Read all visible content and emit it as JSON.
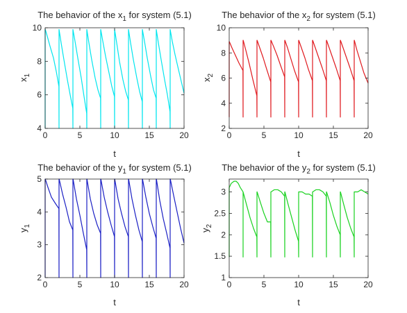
{
  "chart_data": [
    {
      "type": "line",
      "title_prefix": "The behavior of the x",
      "title_subscript": "1",
      "title_suffix": " for system (5.1)",
      "xlabel": "t",
      "ylabel_main": "x",
      "ylabel_subscript": "1",
      "xlim": [
        0,
        20
      ],
      "ylim": [
        4,
        10
      ],
      "xticks": [
        0,
        5,
        10,
        15,
        20
      ],
      "yticks": [
        4,
        6,
        8,
        10
      ],
      "color": "#00e5ee",
      "series": [
        {
          "x": [
            0,
            0,
            0.02,
            0.3,
            0.7,
            1.2,
            1.6,
            1.98,
            2,
            2,
            2.3,
            2.7,
            3.2,
            3.6,
            3.98,
            4,
            4,
            4.3,
            4.7,
            5.2,
            5.6,
            5.98,
            6,
            6,
            6.3,
            6.7,
            7.2,
            7.6,
            7.98,
            8,
            8,
            8.3,
            8.7,
            9.2,
            9.6,
            9.98,
            10,
            10,
            10.3,
            10.7,
            11.2,
            11.6,
            11.98,
            12,
            12,
            12.3,
            12.7,
            13.2,
            13.6,
            13.98,
            14,
            14,
            14.3,
            14.7,
            15.2,
            15.6,
            15.98,
            16,
            16,
            16.3,
            16.7,
            17.2,
            17.6,
            17.98,
            18,
            18,
            18.3,
            18.7,
            19.2,
            19.6,
            20
          ],
          "y": [
            4,
            9.9,
            9.9,
            9.5,
            8.9,
            8.2,
            7.4,
            6.5,
            4,
            9.9,
            9.1,
            8.1,
            6.9,
            6.0,
            5.2,
            4,
            9.9,
            9.2,
            8.2,
            7.0,
            5.9,
            4.9,
            4,
            9.9,
            9.1,
            8.1,
            7.0,
            6.3,
            5.8,
            4,
            9.9,
            9.2,
            8.3,
            7.3,
            6.5,
            5.9,
            4,
            9.9,
            9.1,
            8.0,
            6.9,
            6.2,
            5.7,
            4,
            9.9,
            9.1,
            8.1,
            7.0,
            6.2,
            5.6,
            4,
            9.9,
            9.2,
            8.2,
            7.1,
            6.3,
            5.8,
            4,
            9.9,
            9.1,
            8.1,
            6.9,
            6.0,
            5.0,
            4,
            9.9,
            9.2,
            8.4,
            7.5,
            6.8,
            6.1
          ]
        }
      ]
    },
    {
      "type": "line",
      "title_prefix": "The behavior of the x",
      "title_subscript": "2",
      "title_suffix": " for system (5.1)",
      "xlabel": "t",
      "ylabel_main": "x",
      "ylabel_subscript": "2",
      "xlim": [
        0,
        20
      ],
      "ylim": [
        2,
        10
      ],
      "xticks": [
        0,
        5,
        10,
        15,
        20
      ],
      "yticks": [
        2,
        4,
        6,
        8,
        10
      ],
      "color": "#e0191e",
      "series": [
        {
          "x": [
            0,
            0,
            0.02,
            0.4,
            0.9,
            1.4,
            1.98,
            2,
            2,
            2.02,
            2.4,
            2.9,
            3.4,
            3.98,
            4,
            4,
            4.02,
            4.4,
            4.9,
            5.4,
            5.98,
            6,
            6,
            6.02,
            6.4,
            6.9,
            7.4,
            7.98,
            8,
            8,
            8.02,
            8.4,
            8.9,
            9.4,
            9.98,
            10,
            10,
            10.02,
            10.4,
            10.9,
            11.4,
            11.98,
            12,
            12,
            12.02,
            12.4,
            12.9,
            13.4,
            13.98,
            14,
            14,
            14.02,
            14.4,
            14.9,
            15.4,
            15.98,
            16,
            16,
            16.02,
            16.4,
            16.9,
            17.4,
            17.98,
            18,
            18,
            18.02,
            18.4,
            18.9,
            19.4,
            20
          ],
          "y": [
            2.9,
            8.9,
            8.9,
            8.4,
            7.8,
            7.2,
            6.6,
            2.9,
            9.0,
            9.0,
            8.2,
            7.1,
            5.9,
            4.6,
            2.9,
            9.0,
            9.0,
            8.4,
            7.6,
            6.7,
            5.7,
            2.9,
            9.0,
            9.0,
            8.5,
            7.8,
            7.0,
            6.1,
            2.9,
            9.0,
            9.0,
            8.4,
            7.5,
            6.6,
            5.7,
            2.9,
            9.0,
            9.0,
            8.4,
            7.6,
            6.7,
            5.8,
            2.9,
            9.0,
            9.0,
            8.4,
            7.6,
            6.8,
            5.8,
            2.9,
            9.0,
            9.0,
            8.4,
            7.6,
            6.8,
            5.8,
            2.9,
            9.0,
            9.0,
            8.4,
            7.6,
            6.8,
            5.8,
            2.9,
            9.0,
            9.0,
            8.2,
            7.3,
            6.4,
            5.6
          ]
        }
      ]
    },
    {
      "type": "line",
      "title_prefix": "The behavior of the y",
      "title_subscript": "1",
      "title_suffix": " for system (5.1)",
      "xlabel": "t",
      "ylabel_main": "y",
      "ylabel_subscript": "1",
      "xlim": [
        0,
        20
      ],
      "ylim": [
        2,
        5
      ],
      "xticks": [
        0,
        5,
        10,
        15,
        20
      ],
      "yticks": [
        2,
        3,
        4,
        5
      ],
      "color": "#1a1fc4",
      "series": [
        {
          "x": [
            0,
            0,
            0.02,
            0.4,
            0.9,
            1.5,
            1.98,
            2,
            2,
            2.02,
            2.5,
            3.0,
            3.5,
            3.98,
            4,
            4,
            4.02,
            4.5,
            5.0,
            5.5,
            5.98,
            6,
            6,
            6.02,
            6.5,
            7.0,
            7.5,
            7.98,
            8,
            8,
            8.02,
            8.5,
            9.0,
            9.5,
            9.98,
            10,
            10,
            10.02,
            10.5,
            11.0,
            11.5,
            11.98,
            12,
            12,
            12.02,
            12.5,
            13.0,
            13.5,
            13.98,
            14,
            14,
            14.02,
            14.5,
            15.0,
            15.5,
            15.98,
            16,
            16,
            16.02,
            16.5,
            17.0,
            17.5,
            17.98,
            18,
            18,
            18.02,
            18.5,
            19.0,
            19.5,
            20
          ],
          "y": [
            2,
            5.0,
            5.0,
            4.75,
            4.45,
            4.25,
            4.1,
            2,
            5.0,
            5.0,
            4.55,
            4.15,
            3.7,
            3.45,
            2,
            5.0,
            5.0,
            4.4,
            3.9,
            3.35,
            2.85,
            2,
            5.0,
            5.0,
            4.4,
            3.95,
            3.6,
            3.35,
            2,
            5.0,
            5.0,
            4.45,
            4.0,
            3.6,
            3.25,
            2,
            5.0,
            5.0,
            4.4,
            3.95,
            3.55,
            3.25,
            2,
            5.0,
            5.0,
            4.4,
            3.9,
            3.45,
            3.1,
            2,
            5.0,
            5.0,
            4.45,
            3.95,
            3.55,
            3.2,
            2,
            5.0,
            5.0,
            4.35,
            3.8,
            3.35,
            2.9,
            2,
            5.0,
            5.0,
            4.5,
            4.0,
            3.5,
            3.05
          ]
        }
      ]
    },
    {
      "type": "line",
      "title_prefix": "The behavior of the y",
      "title_subscript": "2",
      "title_suffix": " for system (5.1)",
      "xlabel": "t",
      "ylabel_main": "y",
      "ylabel_subscript": "2",
      "xlim": [
        0,
        20
      ],
      "ylim": [
        1,
        3.3
      ],
      "xticks": [
        0,
        5,
        10,
        15,
        20
      ],
      "yticks": [
        1,
        1.5,
        2,
        2.5,
        3
      ],
      "color": "#18d11e",
      "series": [
        {
          "x": [
            0,
            0,
            0.3,
            0.7,
            1.0,
            1.3,
            1.6,
            2,
            2,
            2,
            2.5,
            3.0,
            3.5,
            3.98,
            4,
            4,
            4.02,
            4.5,
            5.0,
            5.5,
            5.98,
            6,
            6,
            6.02,
            6.5,
            7.0,
            7.5,
            7.98,
            8,
            8,
            8.02,
            8.5,
            9.0,
            9.5,
            9.98,
            10,
            10,
            10.02,
            10.5,
            11.0,
            11.5,
            11.98,
            12,
            12,
            12.02,
            12.5,
            13.0,
            13.5,
            13.98,
            14,
            14,
            14.02,
            14.5,
            15.0,
            15.5,
            15.98,
            16,
            16,
            16.02,
            16.5,
            17.0,
            17.5,
            17.98,
            18,
            18,
            18.02,
            18.5,
            19.0,
            19.5,
            20
          ],
          "y": [
            1.48,
            3.1,
            3.2,
            3.25,
            3.25,
            3.2,
            3.1,
            3.0,
            1.48,
            3.0,
            2.7,
            2.4,
            2.15,
            1.95,
            1.48,
            3.0,
            3.0,
            2.75,
            2.5,
            2.3,
            2.3,
            1.48,
            3.0,
            3.0,
            3.05,
            3.05,
            3.0,
            2.9,
            1.48,
            3.0,
            3.0,
            2.7,
            2.4,
            2.1,
            1.85,
            1.48,
            3.0,
            3.0,
            3.0,
            2.95,
            2.95,
            2.9,
            1.48,
            3.0,
            3.0,
            3.05,
            3.05,
            3.0,
            2.9,
            1.48,
            3.0,
            3.0,
            2.75,
            2.45,
            2.2,
            2.0,
            1.48,
            3.0,
            3.0,
            2.7,
            2.4,
            2.15,
            1.95,
            1.48,
            3.0,
            3.0,
            3.0,
            3.05,
            3.0,
            2.95
          ]
        }
      ]
    }
  ]
}
